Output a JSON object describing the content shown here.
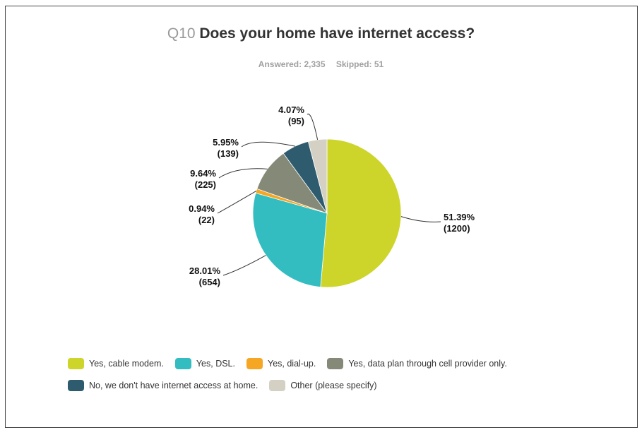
{
  "header": {
    "question_number": "Q10",
    "question_text": "Does your home have internet access?",
    "answered": "Answered: 2,335",
    "skipped": "Skipped: 51"
  },
  "chart_data": {
    "type": "pie",
    "slices": [
      {
        "label": "Yes, cable modem.",
        "percent": 51.39,
        "count": 1200,
        "percent_label": "51.39%",
        "count_label": "(1200)",
        "color": "#cdd52a"
      },
      {
        "label": "Yes, DSL.",
        "percent": 28.01,
        "count": 654,
        "percent_label": "28.01%",
        "count_label": "(654)",
        "color": "#34bdc0"
      },
      {
        "label": "Yes, dial-up.",
        "percent": 0.94,
        "count": 22,
        "percent_label": "0.94%",
        "count_label": "(22)",
        "color": "#f5a623"
      },
      {
        "label": "Yes, data plan through cell provider only.",
        "percent": 9.64,
        "count": 225,
        "percent_label": "9.64%",
        "count_label": "(225)",
        "color": "#848a77"
      },
      {
        "label": "No, we don't have internet access at home.",
        "percent": 5.95,
        "count": 139,
        "percent_label": "5.95%",
        "count_label": "(139)",
        "color": "#2e5c6e"
      },
      {
        "label": "Other (please specify)",
        "percent": 4.07,
        "count": 95,
        "percent_label": "4.07%",
        "count_label": "(95)",
        "color": "#d4d1c4"
      }
    ],
    "legend_placement": "bottom"
  }
}
